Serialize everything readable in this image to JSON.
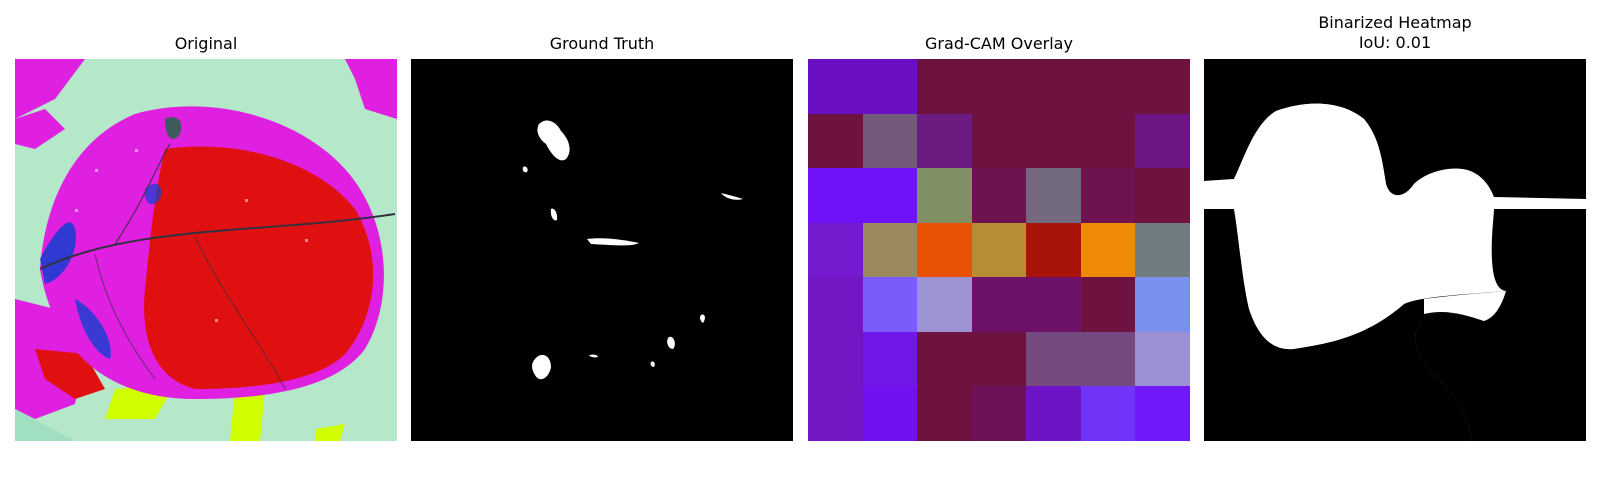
{
  "panels": {
    "original": {
      "title": "Original"
    },
    "ground_truth": {
      "title": "Ground Truth"
    },
    "overlay": {
      "title": "Grad-CAM Overlay",
      "cells": [
        [
          "#6a0fc4",
          "#6a0fc4",
          "#6e1240",
          "#6e1240",
          "#6e1240",
          "#6e1240",
          "#6e1240"
        ],
        [
          "#6e1240",
          "#745a7a",
          "#6b1a80",
          "#6e1240",
          "#6e1240",
          "#6e1240",
          "#6c1684"
        ],
        [
          "#7012f8",
          "#7012f8",
          "#818f64",
          "#6e1250",
          "#746a80",
          "#6e1250",
          "#6e1240"
        ],
        [
          "#741bcf",
          "#9a8a5c",
          "#e85206",
          "#b68d35",
          "#a8140a",
          "#ee8a06",
          "#717c80"
        ],
        [
          "#7316c4",
          "#7a5cfc",
          "#9c94d2",
          "#6e1268",
          "#6e1268",
          "#6e1240",
          "#7a90ee"
        ],
        [
          "#7316c4",
          "#7018e8",
          "#6e1240",
          "#6e1240",
          "#744a80",
          "#744a80",
          "#9c90d2"
        ],
        [
          "#7316c4",
          "#7012f0",
          "#6e1240",
          "#6e1258",
          "#6c14c6",
          "#7034f8",
          "#7018f8"
        ]
      ]
    },
    "binarized": {
      "title_line1": "Binarized Heatmap",
      "title_line2": "IoU: 0.01"
    }
  },
  "colors": {
    "leaf_magenta": "#e020e0",
    "leaf_red": "#e01010",
    "background_green": "#b8f0d0",
    "mask_white": "#ffffff",
    "mask_black": "#000000"
  }
}
